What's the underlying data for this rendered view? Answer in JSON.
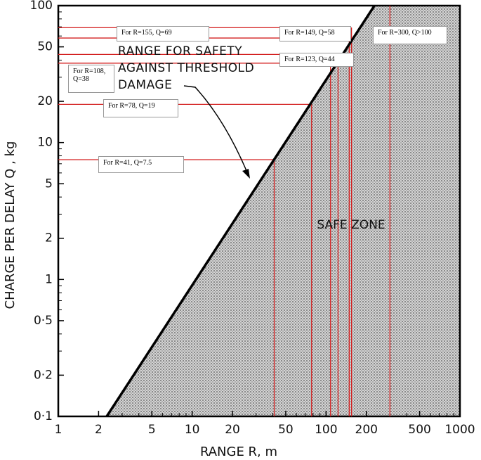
{
  "chart_data": {
    "type": "line",
    "x_label": "RANGE R, m",
    "y_label": "CHARGE PER DELAY Q , kg",
    "xlim": [
      1,
      1000
    ],
    "ylim": [
      0.1,
      100
    ],
    "xscale": "log",
    "yscale": "log",
    "xticks": [
      1,
      2,
      5,
      10,
      20,
      50,
      100,
      200,
      500,
      1000
    ],
    "yticks": [
      {
        "value": 0.1,
        "label": "0·1"
      },
      {
        "value": 0.2,
        "label": "0·2"
      },
      {
        "value": 0.5,
        "label": "0·5"
      },
      1,
      2,
      5,
      10,
      20,
      50,
      100
    ],
    "series": [
      {
        "color": "#000000",
        "x": [
          2.3,
          230
        ],
        "y": [
          0.1,
          100
        ]
      }
    ],
    "region_label": "SAFE ZONE",
    "annotation": [
      "RANGE FOR SAFETY",
      "AGAINST THRESHOLD",
      "DAMAGE"
    ],
    "marker_color": "#d42020",
    "markers": [
      {
        "label": "For R=41, Q=7.5",
        "x": 41,
        "y": 7.5
      },
      {
        "label": "For R=78, Q=19",
        "x": 78,
        "y": 19
      },
      {
        "label": "For R=108, Q=38",
        "x": 108,
        "y": 38
      },
      {
        "label": "For R=123, Q=44",
        "x": 123,
        "y": 44
      },
      {
        "label": "For R=149, Q=58",
        "x": 149,
        "y": 58
      },
      {
        "label": "For R=155, Q=69",
        "x": 155,
        "y": 69
      },
      {
        "label": "For R=300, Q>100",
        "x": 300,
        "y": null
      }
    ]
  }
}
